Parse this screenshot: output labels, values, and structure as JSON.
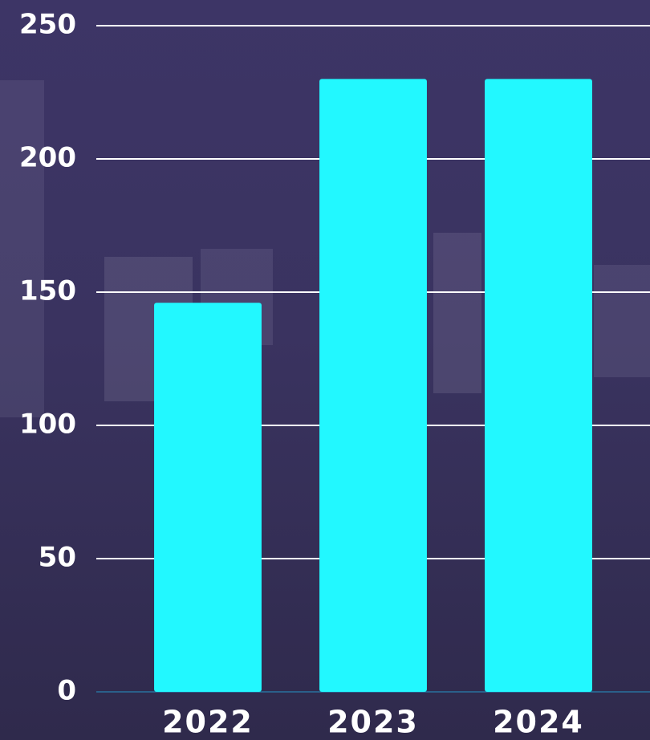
{
  "chart_data": {
    "type": "bar",
    "categories": [
      "2022",
      "2023",
      "2024"
    ],
    "values": [
      146,
      230,
      230
    ],
    "color": "#22f8ff",
    "ylim": [
      0,
      250
    ],
    "yticks": [
      0,
      50,
      100,
      150,
      200,
      250
    ],
    "grid": true
  }
}
